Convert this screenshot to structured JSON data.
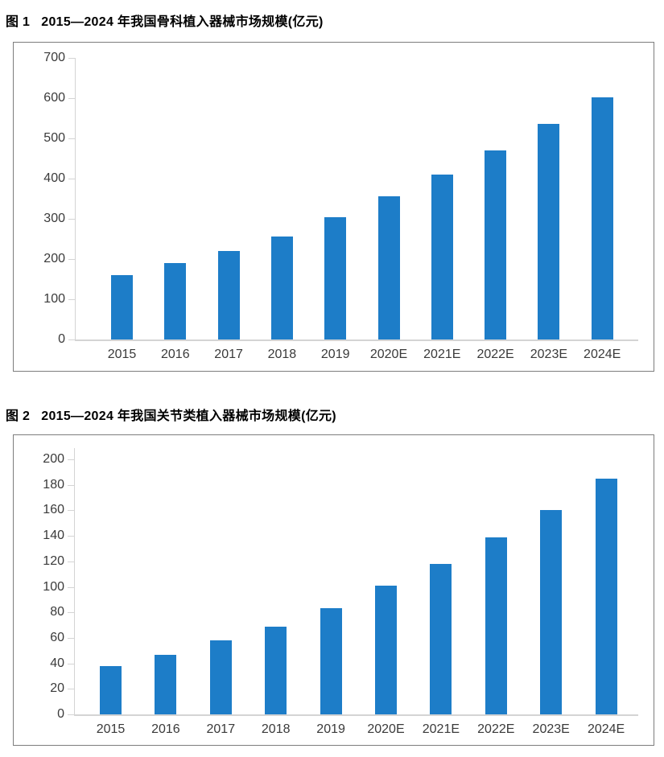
{
  "colors": {
    "bar": "#1d7dc8",
    "axis_line": "#d4d4d4",
    "axis_text": "#3a3a3a",
    "panel_border": "#7d7d7d",
    "title_text": "#000000",
    "background": "#ffffff"
  },
  "figures": [
    {
      "fig_label": "图 1",
      "title": "2015—2024 年我国骨科植入器械市场规模(亿元)",
      "chart_data": {
        "type": "bar",
        "categories": [
          "2015",
          "2016",
          "2017",
          "2018",
          "2019",
          "2020E",
          "2021E",
          "2022E",
          "2023E",
          "2024E"
        ],
        "values": [
          160,
          190,
          221,
          257,
          304,
          357,
          410,
          471,
          537,
          602
        ],
        "title": "2015—2024 年我国骨科植入器械市场规模(亿元)",
        "xlabel": "",
        "ylabel": "",
        "ylim": [
          0,
          700
        ],
        "ytick_step": 100,
        "grid": false,
        "legend": "none"
      }
    },
    {
      "fig_label": "图 2",
      "title": "2015—2024 年我国关节类植入器械市场规模(亿元)",
      "chart_data": {
        "type": "bar",
        "categories": [
          "2015",
          "2016",
          "2017",
          "2018",
          "2019",
          "2020E",
          "2021E",
          "2022E",
          "2023E",
          "2024E"
        ],
        "values": [
          38,
          47,
          58,
          69,
          83,
          101,
          118,
          139,
          160,
          185
        ],
        "title": "2015—2024 年我国关节类植入器械市场规模(亿元)",
        "xlabel": "",
        "ylabel": "",
        "ylim": [
          0,
          200
        ],
        "ytick_step": 20,
        "grid": false,
        "legend": "none"
      }
    }
  ]
}
